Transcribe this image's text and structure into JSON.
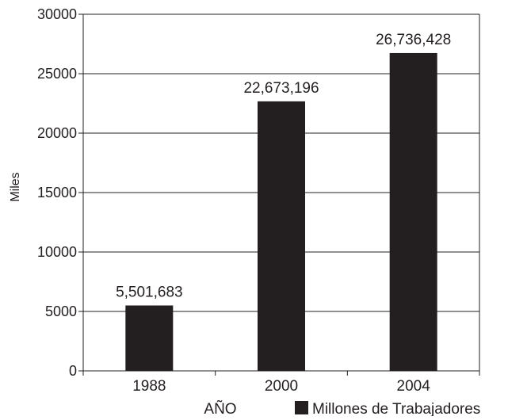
{
  "chart_data": {
    "type": "bar",
    "categories": [
      "1988",
      "2000",
      "2004"
    ],
    "values": [
      5501.683,
      22673.196,
      26736.428
    ],
    "data_labels": [
      "5,501,683",
      "22,673,196",
      "26,736,428"
    ],
    "ylabel": "Miles",
    "xlabel": "AÑO",
    "ylim": [
      0,
      30000
    ],
    "yticks": [
      0,
      5000,
      10000,
      15000,
      20000,
      25000,
      30000
    ],
    "series": [
      {
        "name": "Millones de Trabajadores",
        "values": [
          5501.683,
          22673.196,
          26736.428
        ]
      }
    ],
    "grid": "horizontal",
    "legend_position": "bottom-right",
    "colors": {
      "bar": "#231f20",
      "axis": "#231f20",
      "grid": "#231f20"
    }
  }
}
